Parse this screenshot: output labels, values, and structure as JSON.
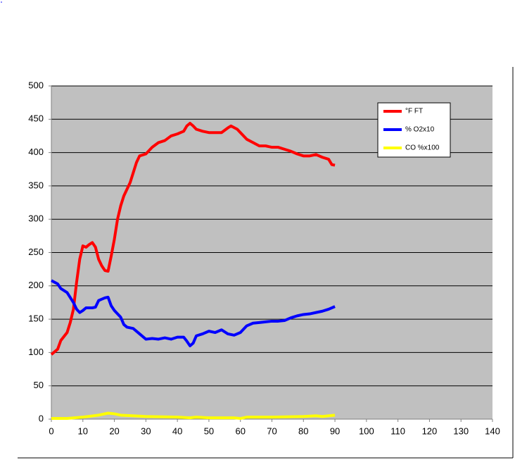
{
  "chart_data": {
    "type": "line",
    "xlim": [
      0,
      140
    ],
    "xticks": [
      0,
      10,
      20,
      30,
      40,
      50,
      60,
      70,
      80,
      90,
      100,
      110,
      120,
      130,
      140
    ],
    "ylim": [
      0,
      500
    ],
    "yticks": [
      0,
      50,
      100,
      150,
      200,
      250,
      300,
      350,
      400,
      450,
      500
    ],
    "grid": true,
    "legend": "upper right",
    "series": [
      {
        "name": "°F FT",
        "color": "#ff0000",
        "x": [
          0,
          2,
          3,
          5,
          6,
          7,
          8,
          9,
          10,
          11,
          12,
          13,
          14,
          15,
          16,
          17,
          18,
          19,
          20,
          21,
          22,
          23,
          24,
          25,
          26,
          27,
          28,
          30,
          32,
          34,
          36,
          38,
          40,
          42,
          43,
          44,
          45,
          46,
          48,
          50,
          52,
          54,
          56,
          57,
          59,
          60,
          62,
          64,
          66,
          68,
          70,
          72,
          74,
          76,
          78,
          80,
          82,
          84,
          86,
          88,
          89,
          90
        ],
        "values": [
          97,
          105,
          118,
          130,
          145,
          165,
          205,
          240,
          260,
          258,
          262,
          265,
          258,
          240,
          230,
          223,
          222,
          245,
          270,
          300,
          320,
          335,
          345,
          355,
          370,
          385,
          395,
          398,
          408,
          415,
          418,
          425,
          428,
          432,
          440,
          444,
          440,
          435,
          432,
          430,
          430,
          430,
          437,
          440,
          435,
          430,
          420,
          415,
          410,
          410,
          408,
          408,
          405,
          402,
          398,
          395,
          395,
          397,
          393,
          390,
          382,
          381
        ]
      },
      {
        "name": "% O2x10",
        "color": "#0000ff",
        "x": [
          0,
          2,
          3,
          5,
          7,
          8,
          9,
          10,
          11,
          13,
          14,
          15,
          16,
          17,
          18,
          19,
          20,
          22,
          23,
          24,
          26,
          28,
          30,
          32,
          34,
          36,
          38,
          40,
          42,
          43,
          44,
          45,
          46,
          48,
          50,
          52,
          54,
          56,
          58,
          60,
          62,
          64,
          66,
          68,
          70,
          72,
          74,
          76,
          78,
          80,
          82,
          84,
          86,
          88,
          90
        ],
        "values": [
          208,
          203,
          196,
          190,
          175,
          165,
          160,
          163,
          167,
          167,
          168,
          178,
          180,
          182,
          183,
          170,
          163,
          153,
          142,
          138,
          136,
          128,
          120,
          121,
          120,
          122,
          120,
          123,
          123,
          117,
          110,
          114,
          125,
          128,
          132,
          130,
          134,
          128,
          126,
          130,
          140,
          144,
          145,
          146,
          147,
          147,
          148,
          152,
          155,
          157,
          158,
          160,
          162,
          165,
          169
        ]
      },
      {
        "name": "CO %x100",
        "color": "#ffff00",
        "x": [
          0,
          5,
          10,
          15,
          18,
          20,
          22,
          26,
          30,
          40,
          44,
          46,
          50,
          58,
          60,
          62,
          70,
          80,
          84,
          86,
          88,
          90
        ],
        "values": [
          1,
          1,
          3,
          6,
          9,
          8,
          6,
          5,
          4,
          3,
          2,
          3,
          2,
          2,
          1,
          3,
          3,
          4,
          5,
          4,
          5,
          6
        ]
      }
    ]
  }
}
